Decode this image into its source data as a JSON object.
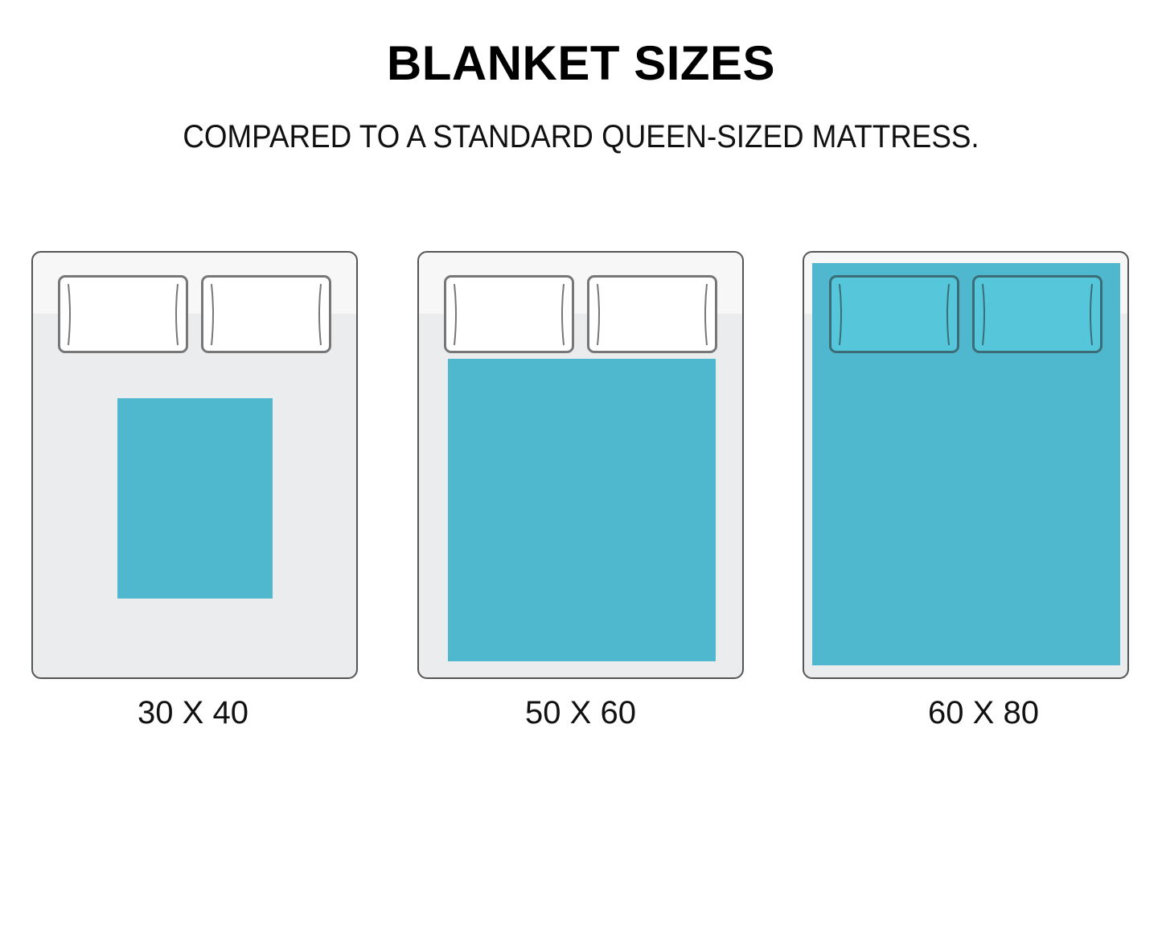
{
  "title": "BLANKET SIZES",
  "subtitle": "COMPARED TO A STANDARD QUEEN-SIZED MATTRESS.",
  "colors": {
    "blanket": "#4fb8ce",
    "mattress": "#ebeced",
    "outline": "#555555"
  },
  "beds": [
    {
      "label": "30 X 40",
      "blanket_size_inches": [
        30,
        40
      ]
    },
    {
      "label": "50 X 60",
      "blanket_size_inches": [
        50,
        60
      ]
    },
    {
      "label": "60 X 80",
      "blanket_size_inches": [
        60,
        80
      ]
    }
  ]
}
